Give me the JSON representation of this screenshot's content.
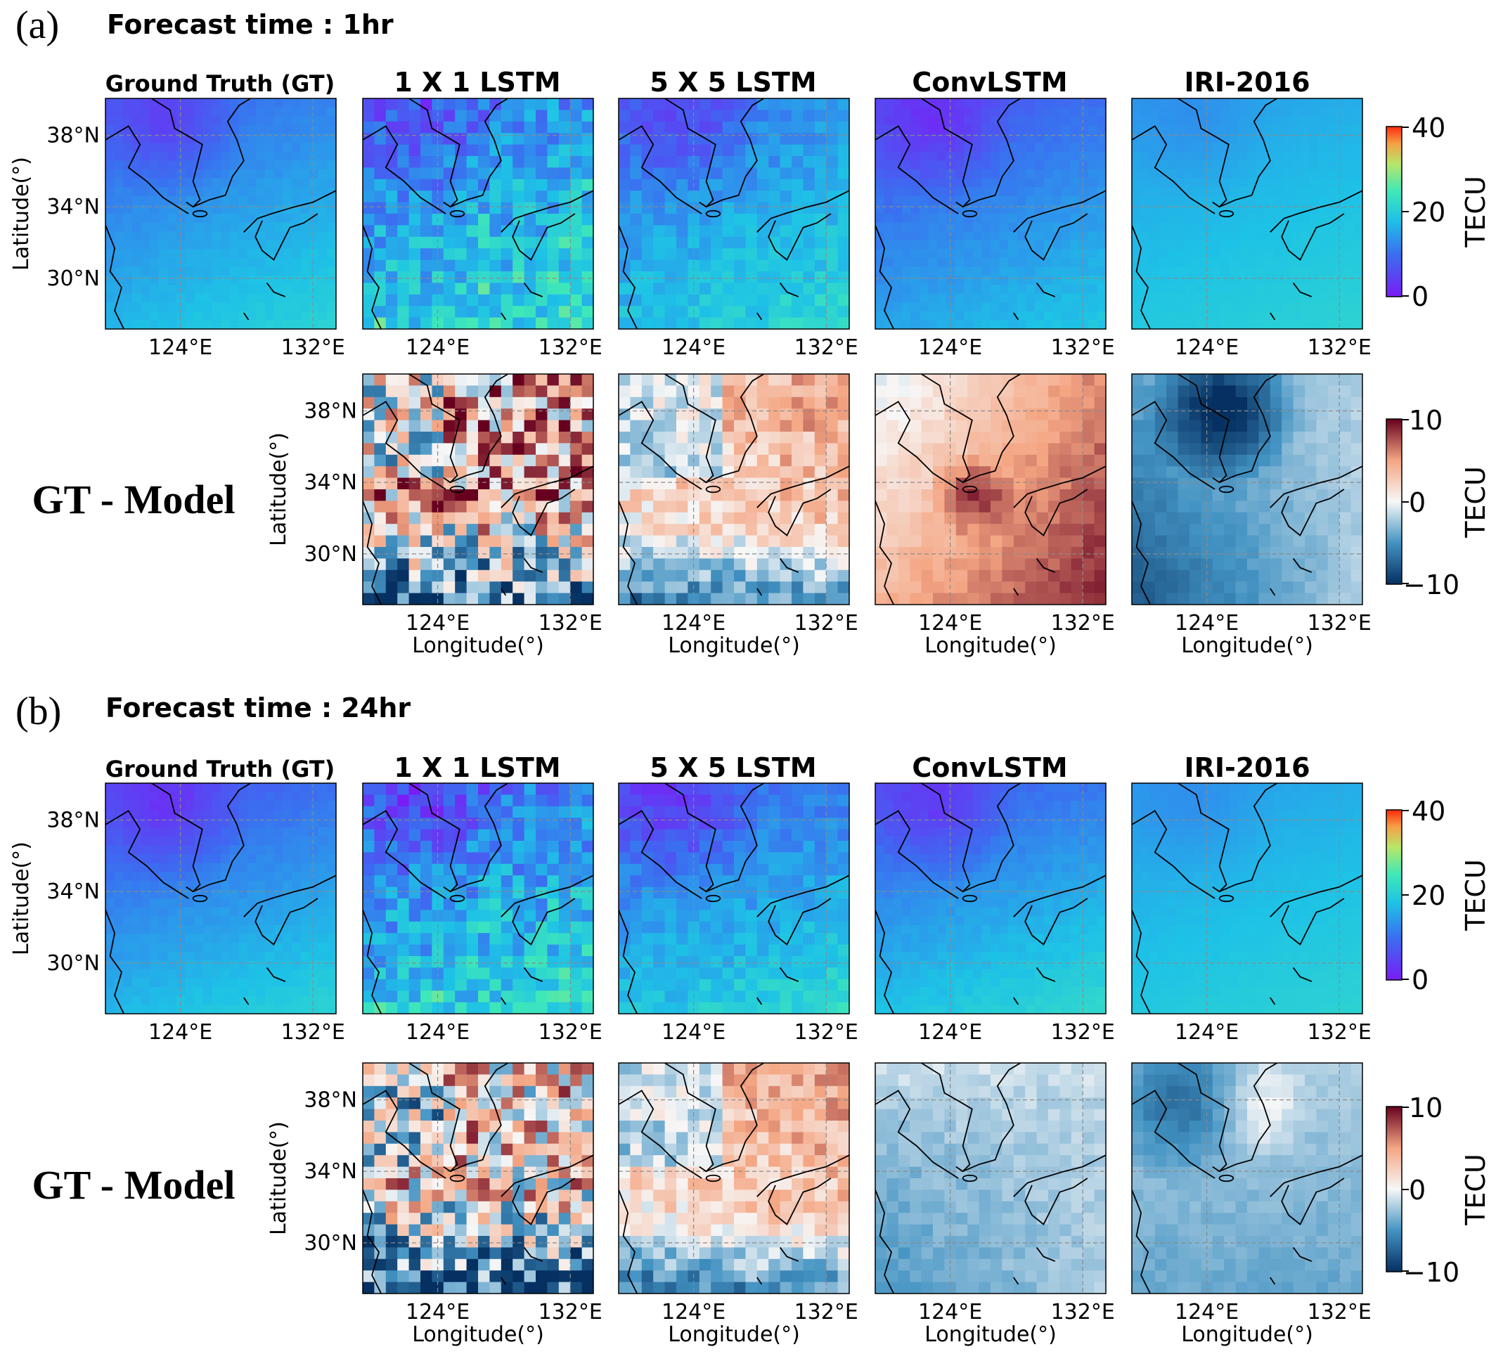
{
  "figure": {
    "panels": [
      {
        "letter": "(a)",
        "forecast_title": "Forecast time : 1hr",
        "row_label": "GT - Model",
        "model_titles": [
          "Ground Truth (GT)",
          "1 X 1 LSTM",
          "5 X 5 LSTM",
          "ConvLSTM",
          "IRI-2016"
        ]
      },
      {
        "letter": "(b)",
        "forecast_title": "Forecast time : 24hr",
        "row_label": "GT - Model",
        "model_titles": [
          "Ground Truth (GT)",
          "1 X 1 LSTM",
          "5 X 5 LSTM",
          "ConvLSTM",
          "IRI-2016"
        ]
      }
    ]
  },
  "chart_data": [
    {
      "type": "heatmap",
      "panel": "(a)",
      "title": "Forecast time : 1hr",
      "maps": [
        "Ground Truth (GT)",
        "1 X 1 LSTM",
        "5 X 5 LSTM",
        "ConvLSTM",
        "IRI-2016"
      ],
      "xlabel": "Longitude(°)",
      "ylabel": "Latitude(°)",
      "xticks": [
        "124°E",
        "132°E"
      ],
      "yticks": [
        "38°N",
        "34°N",
        "30°N"
      ],
      "xlim": [
        120,
        134
      ],
      "ylim": [
        27,
        40
      ],
      "grid": true,
      "tec": {
        "colorbar_label": "TECU",
        "range": [
          0,
          40
        ],
        "ticks": [
          "40",
          "20",
          "0"
        ],
        "colormap": "rainbow",
        "approx_typical_values": {
          "Ground Truth (GT)": [
            5,
            20
          ],
          "1 X 1 LSTM": [
            3,
            32
          ],
          "5 X 5 LSTM": [
            6,
            24
          ],
          "ConvLSTM": [
            4,
            16
          ],
          "IRI-2016": [
            13,
            22
          ]
        }
      },
      "difference": {
        "row_label": "GT - Model",
        "maps": [
          "1 X 1 LSTM",
          "5 X 5 LSTM",
          "ConvLSTM",
          "IRI-2016"
        ],
        "colorbar_label": "TECU",
        "range": [
          -10,
          10
        ],
        "ticks": [
          "10",
          "0",
          "−10"
        ],
        "colormap": "RdBu_r"
      }
    },
    {
      "type": "heatmap",
      "panel": "(b)",
      "title": "Forecast time : 24hr",
      "maps": [
        "Ground Truth (GT)",
        "1 X 1 LSTM",
        "5 X 5 LSTM",
        "ConvLSTM",
        "IRI-2016"
      ],
      "xlabel": "Longitude(°)",
      "ylabel": "Latitude(°)",
      "xticks": [
        "124°E",
        "132°E"
      ],
      "yticks": [
        "38°N",
        "34°N",
        "30°N"
      ],
      "xlim": [
        120,
        134
      ],
      "ylim": [
        27,
        40
      ],
      "grid": true,
      "tec": {
        "colorbar_label": "TECU",
        "range": [
          0,
          40
        ],
        "ticks": [
          "40",
          "20",
          "0"
        ],
        "colormap": "rainbow",
        "approx_typical_values": {
          "Ground Truth (GT)": [
            3,
            19
          ],
          "1 X 1 LSTM": [
            3,
            30
          ],
          "5 X 5 LSTM": [
            4,
            22
          ],
          "ConvLSTM": [
            5,
            20
          ],
          "IRI-2016": [
            10,
            20
          ]
        }
      },
      "difference": {
        "row_label": "GT - Model",
        "maps": [
          "1 X 1 LSTM",
          "5 X 5 LSTM",
          "ConvLSTM",
          "IRI-2016"
        ],
        "colorbar_label": "TECU",
        "range": [
          -10,
          10
        ],
        "ticks": [
          "10",
          "0",
          "−10"
        ],
        "colormap": "RdBu_r"
      }
    }
  ]
}
